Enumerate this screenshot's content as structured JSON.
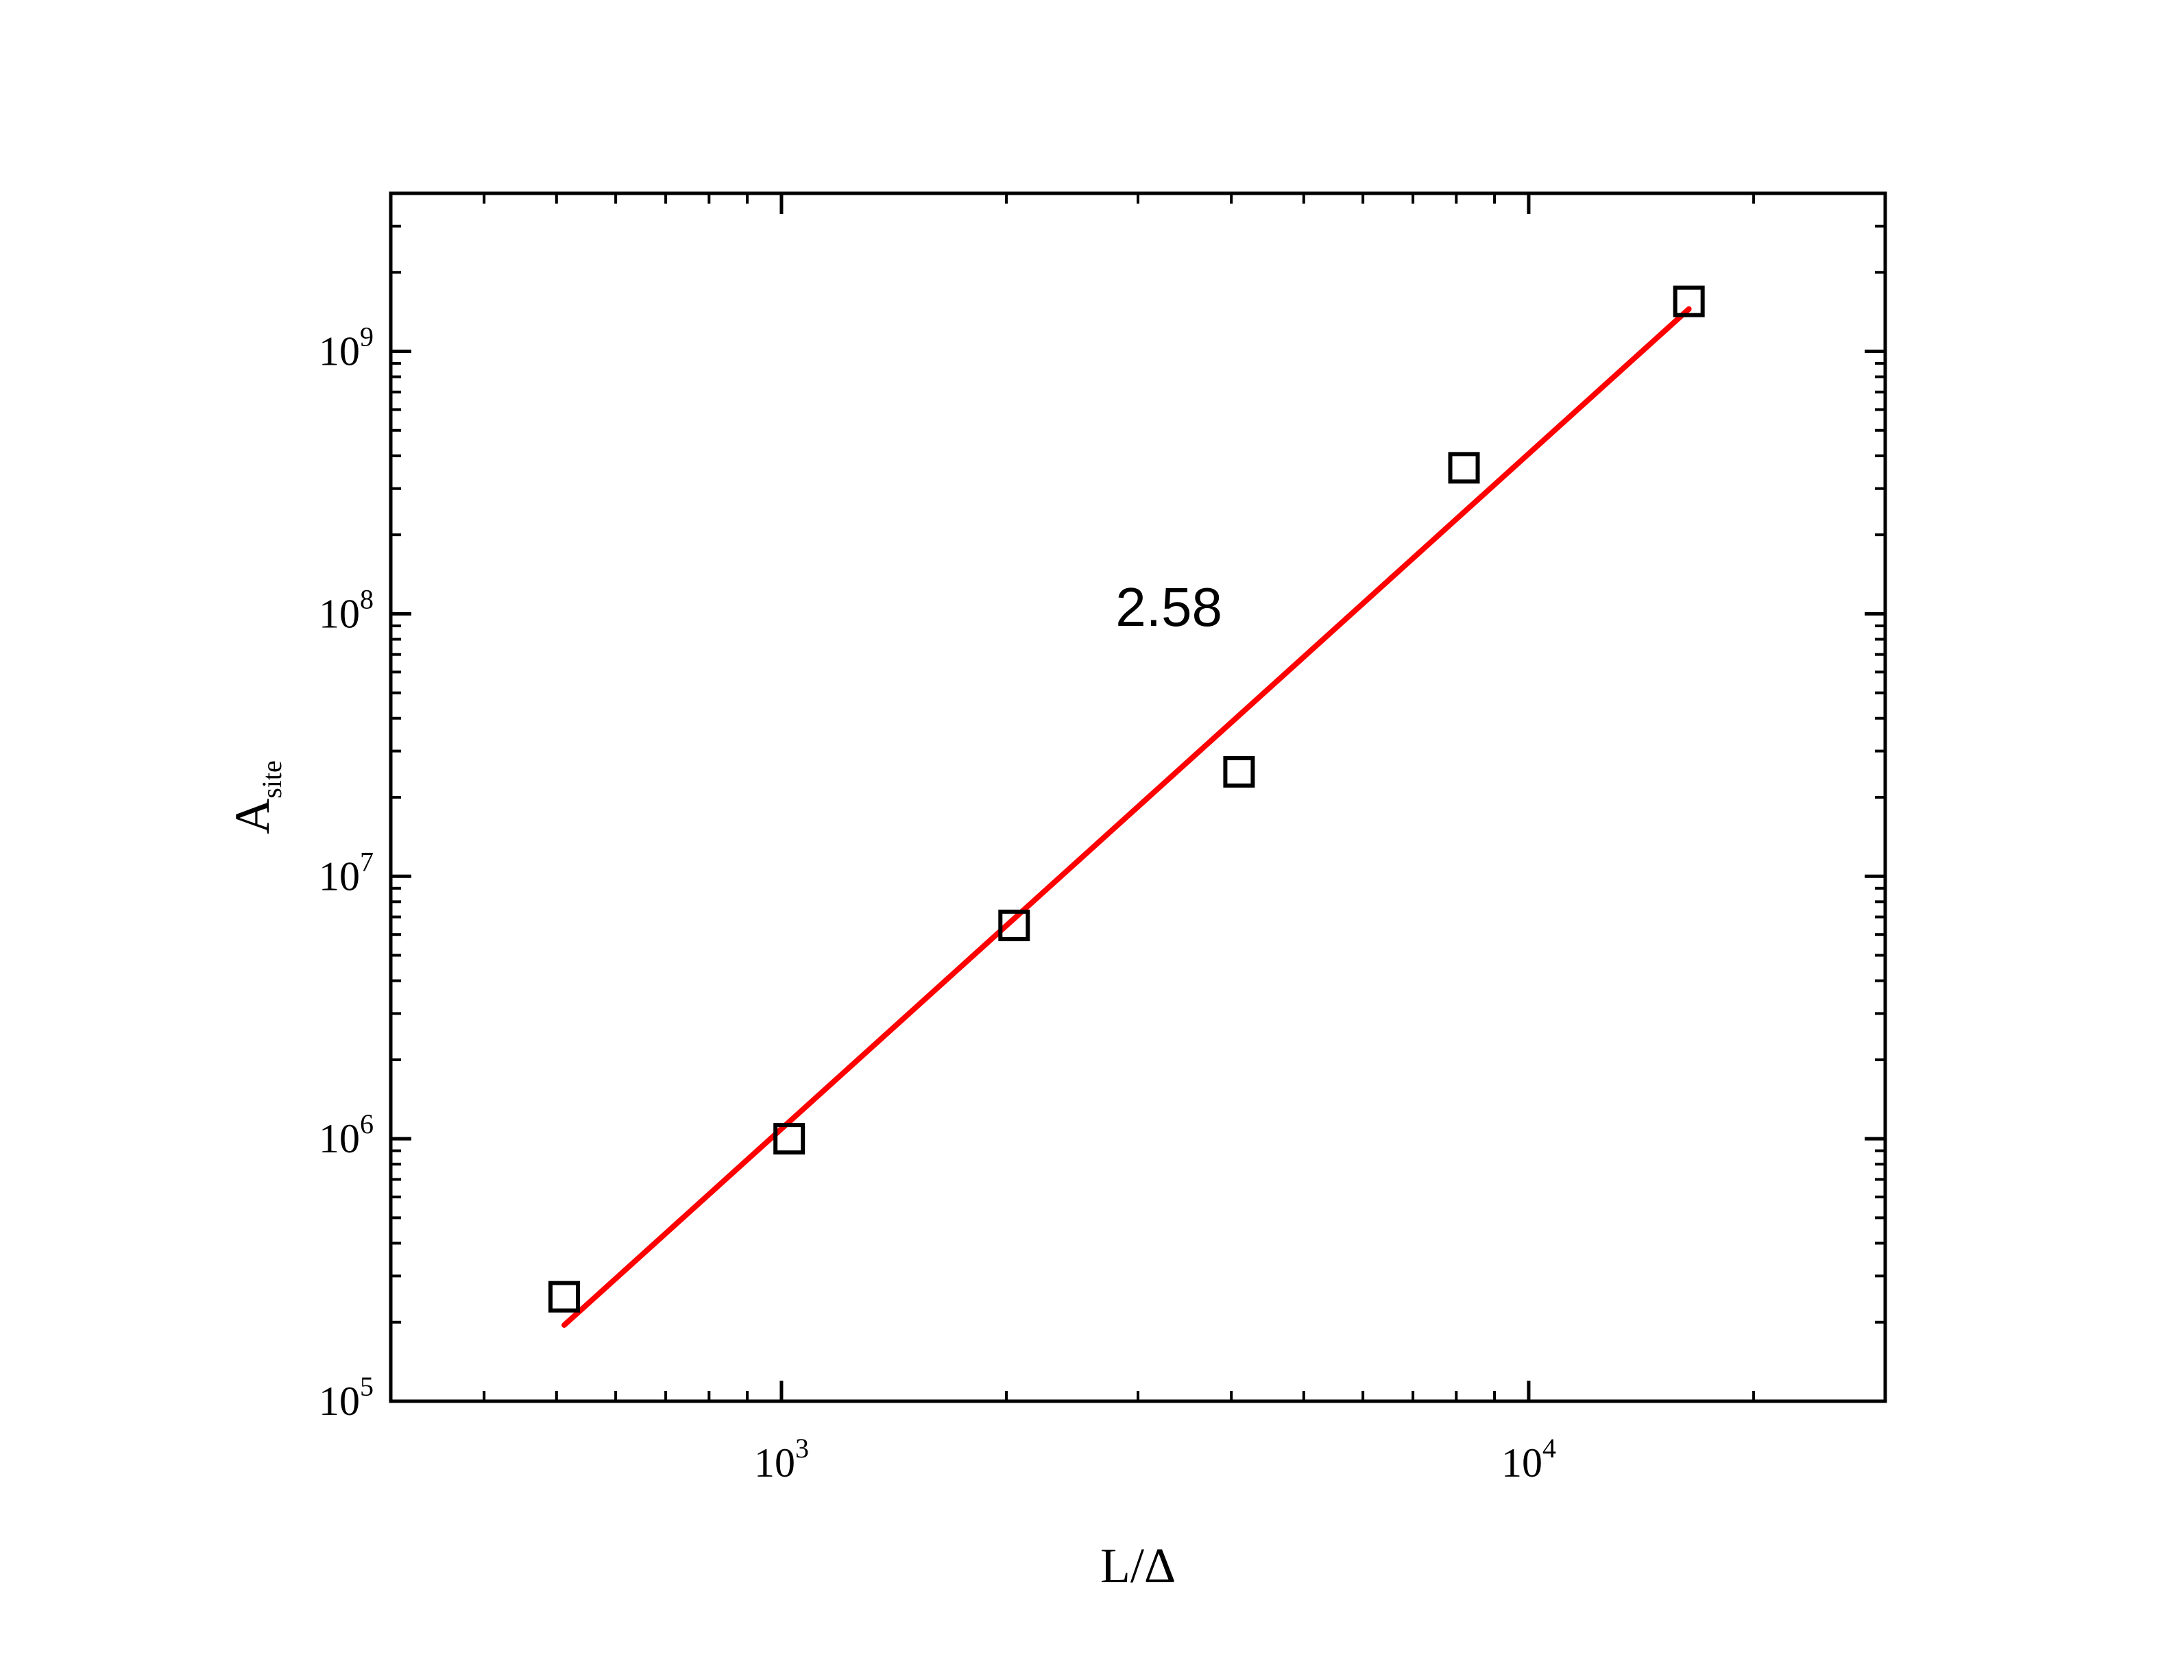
{
  "chart_data": {
    "type": "scatter",
    "title": "",
    "xlabel": "L/Δ",
    "ylabel": {
      "base": "A",
      "subscript": "site"
    },
    "x_scale": "log",
    "y_scale": "log",
    "xlim": [
      300,
      30000
    ],
    "ylim": [
      100000,
      4000000000
    ],
    "x_ticks": [
      {
        "value": 1000,
        "base": "10",
        "exp": "3"
      },
      {
        "value": 10000,
        "base": "10",
        "exp": "4"
      }
    ],
    "y_ticks": [
      {
        "value": 100000,
        "base": "10",
        "exp": "5"
      },
      {
        "value": 1000000,
        "base": "10",
        "exp": "6"
      },
      {
        "value": 10000000,
        "base": "10",
        "exp": "7"
      },
      {
        "value": 100000000,
        "base": "10",
        "exp": "8"
      },
      {
        "value": 1000000000,
        "base": "10",
        "exp": "9"
      }
    ],
    "series": [
      {
        "marker": "open-square",
        "color": "#000000",
        "x": [
          512,
          1024,
          2048,
          4096,
          8192,
          16384
        ],
        "y": [
          250000,
          1000000,
          6500000,
          25000000,
          360000000,
          1550000000
        ]
      }
    ],
    "fit_line": {
      "color": "#ff0000",
      "x": [
        512,
        16384
      ],
      "y": [
        195000,
        1450000000
      ]
    },
    "annotations": [
      {
        "text": "2.58",
        "x": 3300,
        "y": 90000000
      }
    ],
    "grid": false,
    "legend": "none"
  }
}
